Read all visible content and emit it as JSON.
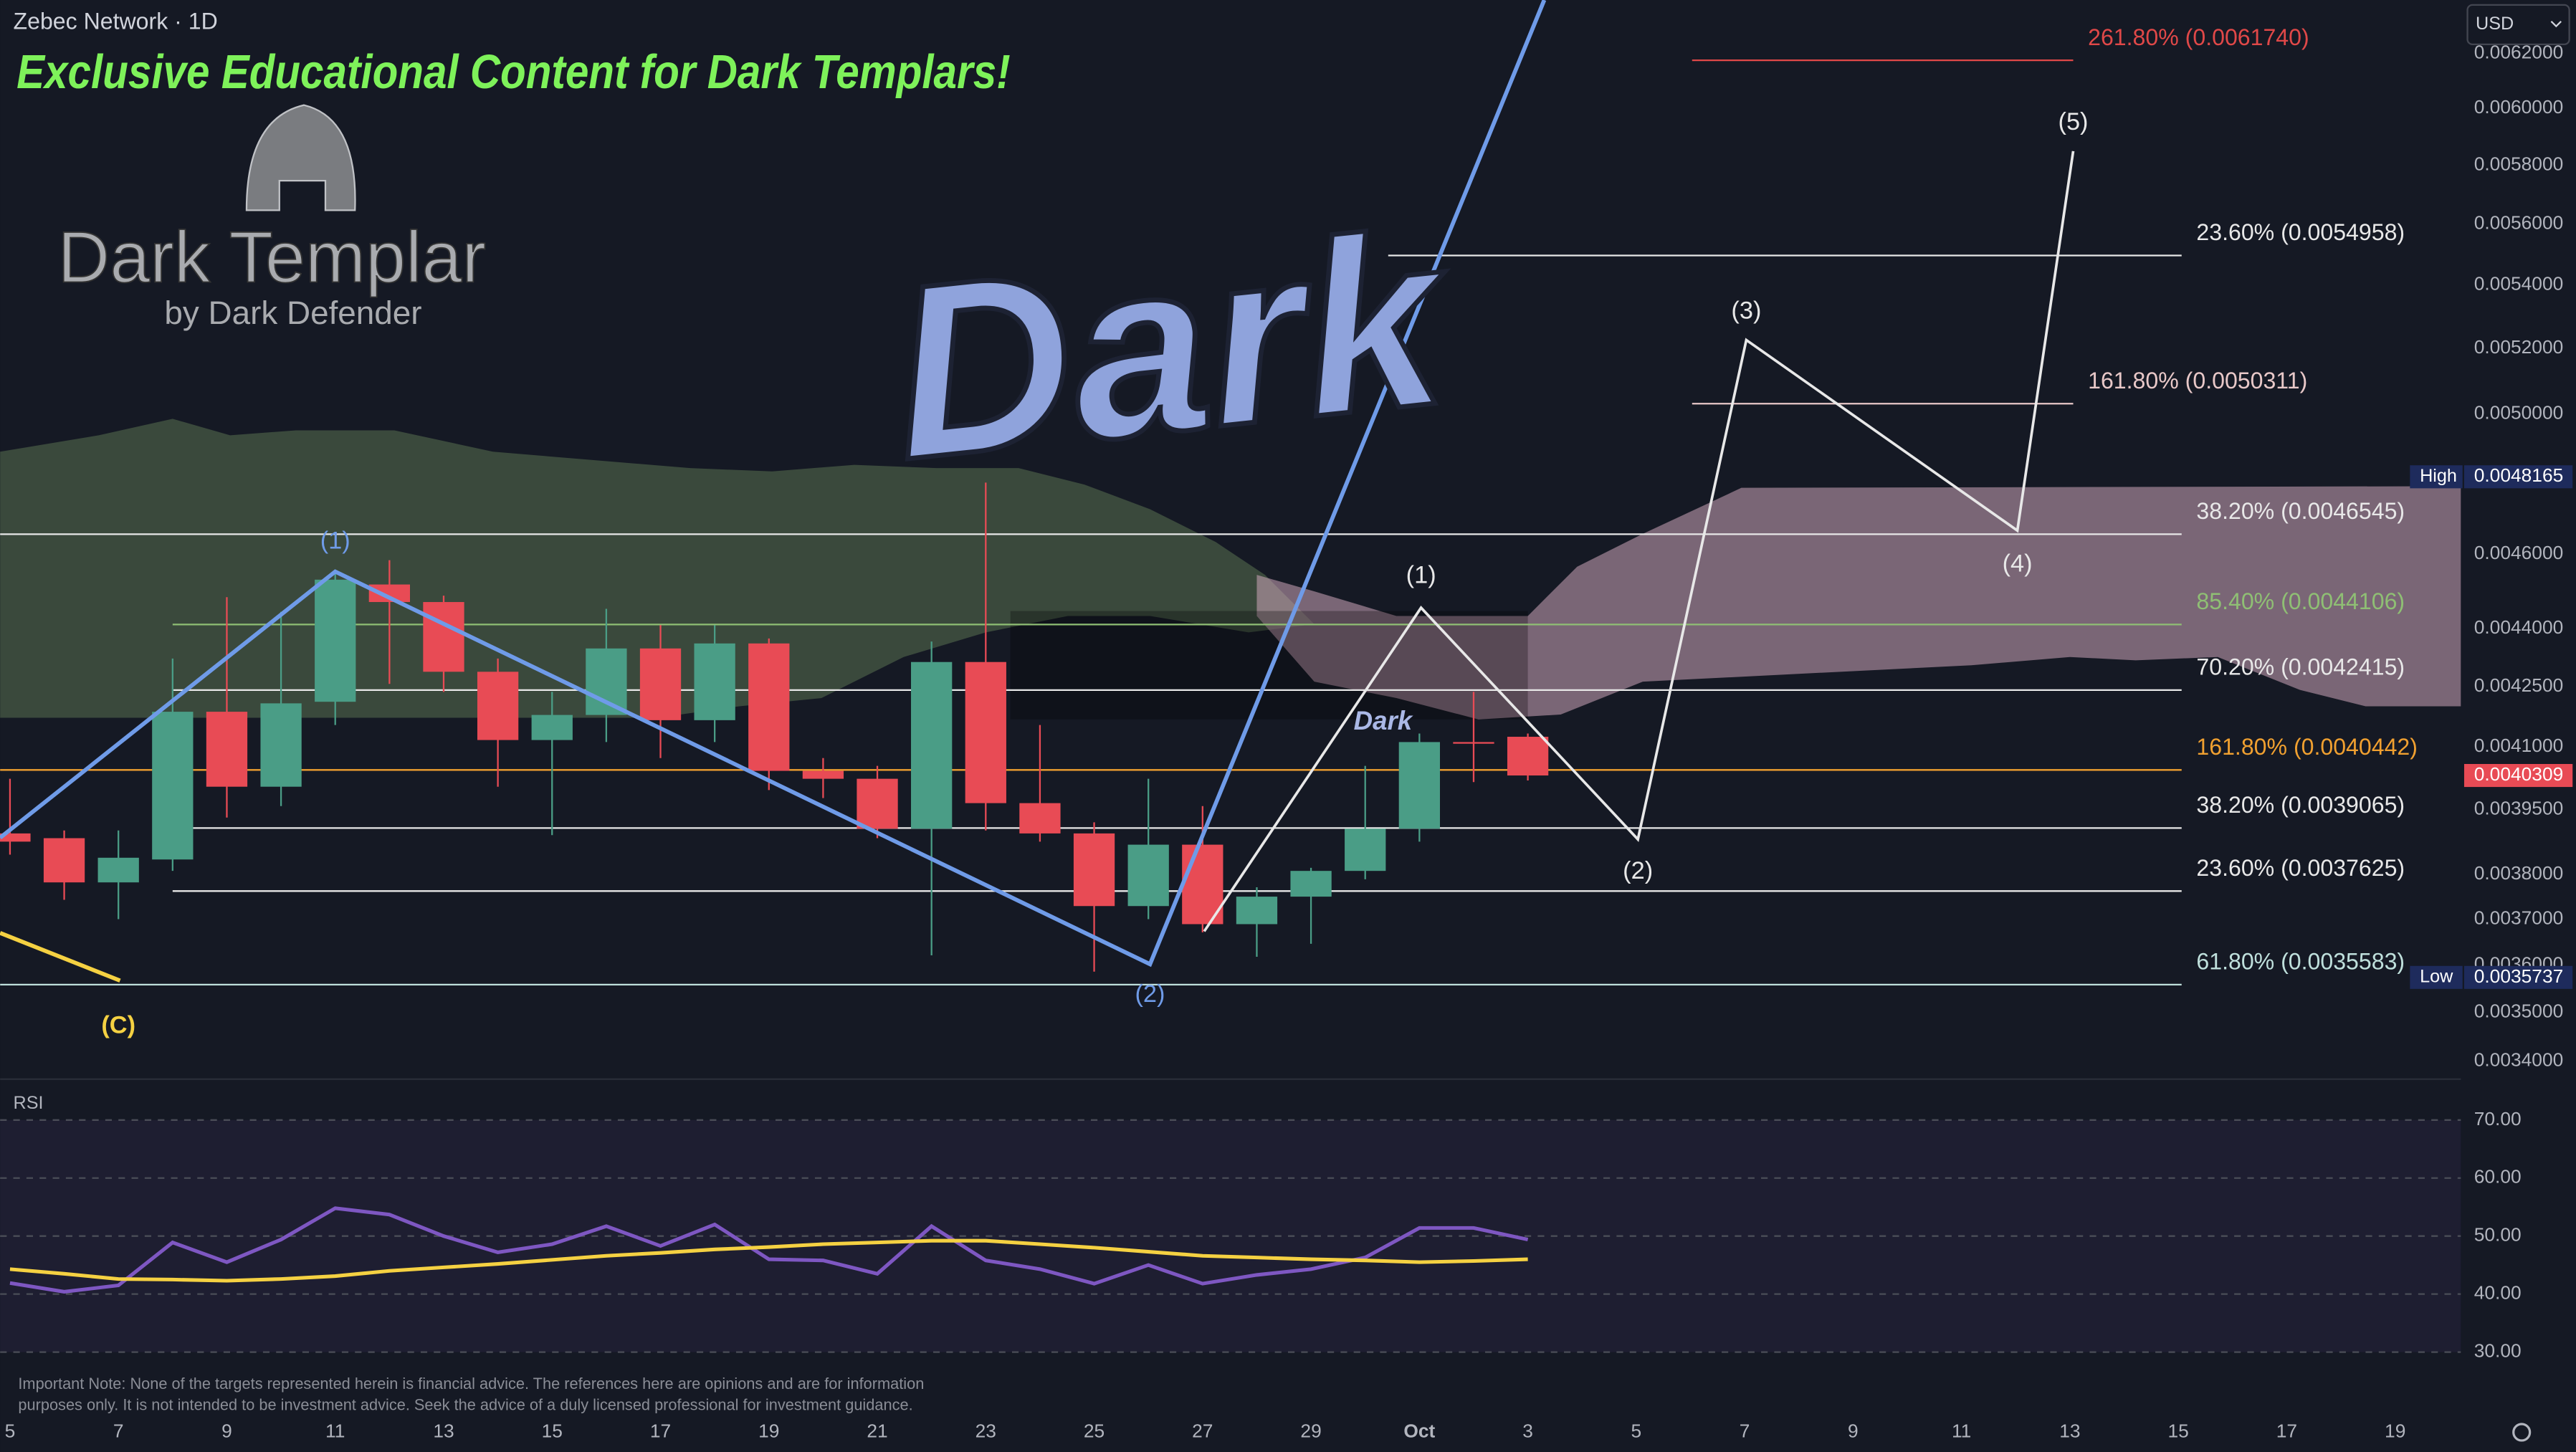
{
  "header": {
    "symbol": "Zebec Network · 1D",
    "currency": "USD"
  },
  "branding": {
    "banner": "Exclusive Educational Content for Dark Templars!",
    "logo_title": "Dark Templar",
    "logo_subtitle": "by Dark Defender",
    "watermark": "Dark",
    "watermark_small": "Dark"
  },
  "chart_data": [
    {
      "type": "candlestick",
      "categories": [
        "5",
        null,
        "7",
        null,
        "9",
        null,
        "11",
        null,
        "13",
        null,
        "15",
        null,
        "17",
        null,
        "19",
        null,
        "21",
        null,
        "23",
        null,
        "25",
        null,
        "27",
        null,
        "29",
        null,
        "Oct",
        null,
        "3",
        null,
        "5",
        null,
        "7",
        null,
        "9",
        null,
        "11",
        null,
        "13",
        null,
        "15",
        null,
        "17",
        null,
        "19"
      ],
      "open": [
        0.003894,
        0.003883,
        0.003782,
        0.003834,
        0.004187,
        0.004004,
        0.004212,
        0.004517,
        0.00447,
        0.004288,
        0.004117,
        0.004179,
        0.004348,
        0.004166,
        0.004361,
        0.004042,
        0.004023,
        0.003905,
        0.004313,
        0.003965,
        0.003894,
        0.003729,
        0.003868,
        0.003689,
        0.00375,
        0.003808,
        0.003905,
        0.004112,
        0.004125,
        null,
        null,
        null,
        null,
        null,
        null,
        null,
        null,
        null,
        null,
        null,
        null,
        null,
        null,
        null,
        null
      ],
      "high": [
        0.004023,
        0.003901,
        0.003901,
        0.004322,
        0.004483,
        0.004444,
        0.004548,
        0.004583,
        0.004487,
        0.004322,
        0.004237,
        0.004452,
        0.004409,
        0.004409,
        0.004374,
        0.004073,
        0.004054,
        0.004366,
        0.0048,
        0.004154,
        0.00392,
        0.004023,
        0.003958,
        0.003771,
        0.003815,
        0.004054,
        0.004133,
        0.004237,
        0.004133,
        null,
        null,
        null,
        null,
        null,
        null,
        null,
        null,
        null,
        null,
        null,
        null,
        null,
        null,
        null,
        null
      ],
      "low": [
        0.003845,
        0.003743,
        0.0037,
        0.003808,
        0.003931,
        0.003958,
        0.004154,
        0.004257,
        0.004237,
        0.004004,
        0.00389,
        0.004112,
        0.004073,
        0.004112,
        0.003996,
        0.003977,
        0.003883,
        0.003621,
        0.003901,
        0.003875,
        0.003586,
        0.0037,
        0.003671,
        0.003618,
        0.003646,
        0.003789,
        0.003875,
        0.004015,
        0.004019,
        null,
        null,
        null,
        null,
        null,
        null,
        null,
        null,
        null,
        null,
        null,
        null,
        null,
        null,
        null,
        null
      ],
      "close": [
        0.003875,
        0.003782,
        0.003838,
        0.004187,
        0.004004,
        0.004208,
        0.00453,
        0.00447,
        0.004288,
        0.004117,
        0.004179,
        0.004348,
        0.004166,
        0.004361,
        0.004042,
        0.004023,
        0.003905,
        0.004313,
        0.003965,
        0.003894,
        0.003729,
        0.003868,
        0.003689,
        0.00375,
        0.003808,
        0.003905,
        0.004112,
        0.004108,
        0.0040309,
        null,
        null,
        null,
        null,
        null,
        null,
        null,
        null,
        null,
        null,
        null,
        null,
        null,
        null,
        null,
        null
      ],
      "up_color": "#4a9d86",
      "down_color": "#e84b55",
      "log_scale": true,
      "grid": false,
      "ylim": [
        0.00337,
        0.0064
      ],
      "yticks": [
        {
          "value": 0.0062,
          "label": "0.0062000"
        },
        {
          "value": 0.006,
          "label": "0.0060000"
        },
        {
          "value": 0.0058,
          "label": "0.0058000"
        },
        {
          "value": 0.0056,
          "label": "0.0056000"
        },
        {
          "value": 0.0054,
          "label": "0.0054000"
        },
        {
          "value": 0.0052,
          "label": "0.0052000"
        },
        {
          "value": 0.005,
          "label": "0.0050000"
        },
        {
          "value": 0.0046,
          "label": "0.0046000"
        },
        {
          "value": 0.0044,
          "label": "0.0044000"
        },
        {
          "value": 0.00425,
          "label": "0.0042500"
        },
        {
          "value": 0.0041,
          "label": "0.0041000"
        },
        {
          "value": 0.00395,
          "label": "0.0039500"
        },
        {
          "value": 0.0038,
          "label": "0.0038000"
        },
        {
          "value": 0.0037,
          "label": "0.0037000"
        },
        {
          "value": 0.0036,
          "label": "0.0036000"
        },
        {
          "value": 0.0035,
          "label": "0.0035000"
        },
        {
          "value": 0.0034,
          "label": "0.0034000"
        }
      ],
      "fib_levels": [
        {
          "label": "261.80% (0.0061740)",
          "value": 0.006174,
          "color": "#e04848"
        },
        {
          "label": "23.60% (0.0054958)",
          "value": 0.0054958,
          "color": "#e8e8e8"
        },
        {
          "label": "161.80% (0.0050311)",
          "value": 0.0050311,
          "color": "#e8c8c8"
        },
        {
          "label": "38.20% (0.0046545)",
          "value": 0.0046545,
          "color": "#e8e8e8"
        },
        {
          "label": "85.40% (0.0044106)",
          "value": 0.0044106,
          "color": "#8fbf74"
        },
        {
          "label": "70.20% (0.0042415)",
          "value": 0.0042415,
          "color": "#e8e8e8"
        },
        {
          "label": "161.80% (0.0040442)",
          "value": 0.0040442,
          "color": "#f0a030"
        },
        {
          "label": "38.20% (0.0039065)",
          "value": 0.0039065,
          "color": "#e8e8e8"
        },
        {
          "label": "23.60% (0.0037625)",
          "value": 0.0037625,
          "color": "#e8e8e8"
        },
        {
          "label": "61.80% (0.0035583)",
          "value": 0.0035583,
          "color": "#bfe0dc"
        }
      ],
      "price_markers": [
        {
          "name": "High",
          "value": 0.0048165,
          "color": "#1e2b5c"
        },
        {
          "value": 0.0040309,
          "color": "#e84b55"
        },
        {
          "name": "Low",
          "value": 0.0035737,
          "color": "#1e2b5c"
        }
      ],
      "wave_labels": [
        {
          "text": "(1)",
          "color": "#6f9be8"
        },
        {
          "text": "(2)",
          "color": "#6f9be8"
        },
        {
          "text": "(1)",
          "color": "#e8e8e8"
        },
        {
          "text": "(2)",
          "color": "#e8e8e8"
        },
        {
          "text": "(3)",
          "color": "#e8e8e8"
        },
        {
          "text": "(4)",
          "color": "#e8e8e8"
        },
        {
          "text": "(5)",
          "color": "#e8e8e8"
        },
        {
          "text": "(C)",
          "color": "#f5d142"
        }
      ]
    },
    {
      "type": "line",
      "title": "RSI",
      "series": [
        {
          "color": "#7e57c2",
          "values": [
            41.9,
            40.4,
            41.5,
            48.9,
            45.5,
            49.4,
            54.8,
            53.7,
            50,
            47.2,
            48.6,
            51.7,
            48.3,
            52,
            46,
            45.8,
            43.5,
            51.7,
            45.8,
            44.3,
            41.8,
            45,
            41.8,
            43.3,
            44.3,
            46.3,
            51.4,
            51.4,
            49.4,
            null,
            null,
            null,
            null,
            null,
            null,
            null,
            null,
            null,
            null,
            null,
            null,
            null,
            null,
            null,
            null
          ]
        },
        {
          "color": "#f5d142",
          "values": [
            44.3,
            43.5,
            42.6,
            42.5,
            42.3,
            42.6,
            43.1,
            44,
            44.6,
            45.2,
            45.9,
            46.6,
            47.1,
            47.7,
            48.1,
            48.6,
            48.9,
            49.2,
            49.2,
            48.6,
            48,
            47.3,
            46.6,
            46.3,
            46,
            45.8,
            45.5,
            45.7,
            46,
            null,
            null,
            null,
            null,
            null,
            null,
            null,
            null,
            null,
            null,
            null,
            null,
            null,
            null,
            null,
            null
          ]
        }
      ],
      "ylim": [
        27.5,
        76.2
      ],
      "yticks": [
        {
          "value": 70,
          "label": "70.00"
        },
        {
          "value": 60,
          "label": "60.00"
        },
        {
          "value": 50,
          "label": "50.00"
        },
        {
          "value": 40,
          "label": "40.00"
        },
        {
          "value": 30,
          "label": "30.00"
        }
      ],
      "band": [
        30,
        70
      ]
    }
  ],
  "footer": {
    "note": [
      "Important Note: None of the targets represented herein is financial advice. The references here are opinions and are for information",
      "purposes only. It is not intended to be investment advice. Seek the advice of a duly licensed professional for investment guidance."
    ]
  }
}
